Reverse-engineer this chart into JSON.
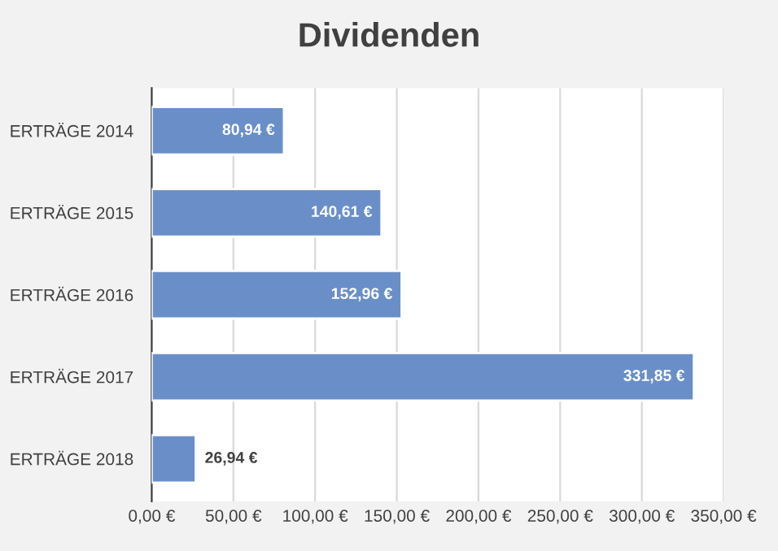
{
  "chart_data": {
    "type": "bar",
    "orientation": "horizontal",
    "title": "Dividenden",
    "categories": [
      "ERTRÄGE 2014",
      "ERTRÄGE 2015",
      "ERTRÄGE 2016",
      "ERTRÄGE 2017",
      "ERTRÄGE 2018"
    ],
    "values": [
      80.94,
      140.61,
      152.96,
      331.85,
      26.94
    ],
    "value_labels": [
      "80,94 €",
      "140,61 €",
      "152,96 €",
      "331,85 €",
      "26,94 €"
    ],
    "color": "#6a8fc8",
    "xlim": [
      0,
      350
    ],
    "xticks": [
      {
        "value": 0,
        "label": "0,00 €"
      },
      {
        "value": 50,
        "label": "50,00 €"
      },
      {
        "value": 100,
        "label": "100,00 €"
      },
      {
        "value": 150,
        "label": "150,00 €"
      },
      {
        "value": 200,
        "label": "200,00 €"
      },
      {
        "value": 250,
        "label": "250,00 €"
      },
      {
        "value": 300,
        "label": "300,00 €"
      },
      {
        "value": 350,
        "label": "350,00 €"
      }
    ],
    "grid": "x",
    "legend": false
  }
}
